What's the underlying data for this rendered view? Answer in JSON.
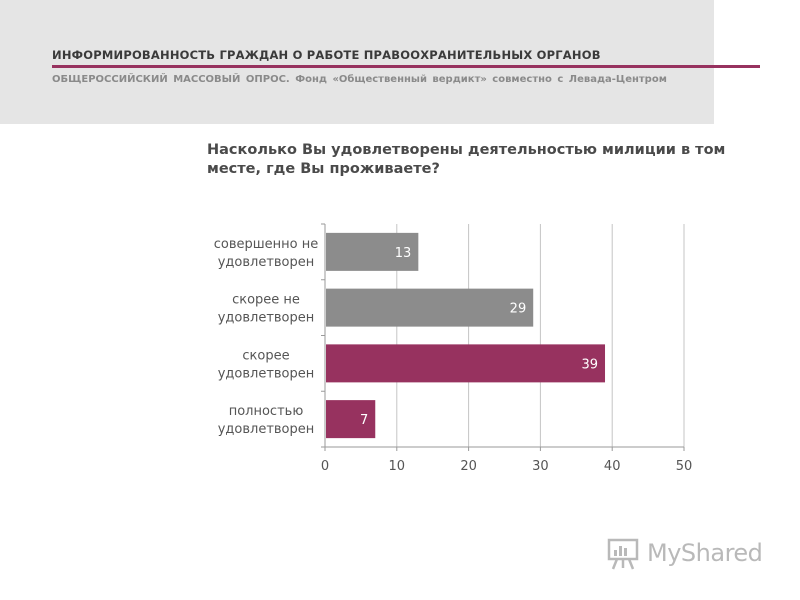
{
  "header": {
    "title": "ИНФОРМИРОВАННОСТЬ ГРАЖДАН О РАБОТЕ ПРАВООХРАНИТЕЛЬНЫХ ОРГАНОВ",
    "subtitle": "ОБЩЕРОССИЙСКИЙ МАССОВЫЙ ОПРОС. Фонд «Общественный вердикт» совместно с Левада-Центром",
    "accent_color": "#97325f"
  },
  "question": "Насколько Вы удовлетворены деятельностью милиции в том месте, где Вы проживаете?",
  "logo": {
    "text": "MyShared",
    "icon": "presentation-board-icon"
  },
  "chart_data": {
    "type": "bar",
    "orientation": "horizontal",
    "categories": [
      [
        "совершенно не",
        "удовлетворен"
      ],
      [
        "скорее не",
        "удовлетворен"
      ],
      [
        "скорее",
        "удовлетворен"
      ],
      [
        "полностью",
        "удовлетворен"
      ]
    ],
    "values": [
      13,
      29,
      39,
      7
    ],
    "data_labels": [
      "13",
      "29",
      "39",
      "7"
    ],
    "colors": [
      "#8c8c8c",
      "#8c8c8c",
      "#97325f",
      "#97325f"
    ],
    "xlim": [
      0,
      50
    ],
    "xticks": [
      0,
      10,
      20,
      30,
      40,
      50
    ],
    "tick_labels": [
      "0",
      "10",
      "20",
      "30",
      "40",
      "50"
    ],
    "grid": true,
    "legend": "none"
  }
}
